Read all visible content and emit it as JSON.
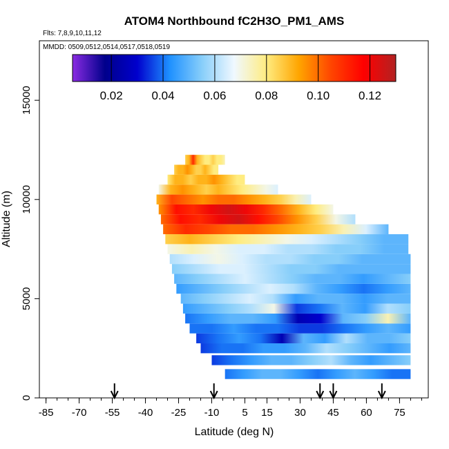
{
  "chart_data": {
    "type": "heatmap",
    "title": "ATOM4 Northbound fC2H3O_PM1_AMS",
    "subtitle": "Flts: 7,8,9,10,11,12",
    "annotation": "MMDD: 0509,0512,0514,0517,0518,0519",
    "xlabel": "Latitude (deg N)",
    "ylabel": "Altitude (m)",
    "xlim": [
      -88,
      88
    ],
    "ylim": [
      0,
      18000
    ],
    "x_ticks": [
      -85,
      -70,
      -55,
      -40,
      -25,
      -10,
      5,
      15,
      30,
      45,
      60,
      75
    ],
    "x_tick_labels": [
      "-85",
      "-70",
      "-55",
      "-40",
      "-25",
      "-10",
      "5",
      "15",
      "30",
      "45",
      "60",
      "75"
    ],
    "y_ticks": [
      0,
      5000,
      10000,
      15000
    ],
    "y_tick_labels": [
      "0",
      "5000",
      "10000",
      "15000"
    ],
    "colorbar": {
      "range": [
        0.005,
        0.13
      ],
      "ticks": [
        0.02,
        0.04,
        0.06,
        0.08,
        0.1,
        0.12
      ],
      "tick_labels": [
        "0.02",
        "0.04",
        "0.06",
        "0.08",
        "0.10",
        "0.12"
      ],
      "colors": [
        "#8a2be2",
        "#00008b",
        "#0000cd",
        "#1e90ff",
        "#87cefa",
        "#f0f8ff",
        "#ffec80",
        "#ffa500",
        "#ff4500",
        "#ff0000",
        "#b22222"
      ]
    },
    "arrows_latitude": [
      -54,
      -9,
      39,
      45,
      67
    ],
    "bands": [
      {
        "alt": 1200,
        "lat_min": -4,
        "lat_max": 80,
        "values": [
          0.04,
          0.045,
          0.05,
          0.05,
          0.045,
          0.04,
          0.045,
          0.05,
          0.045,
          0.04,
          0.04
        ]
      },
      {
        "alt": 1900,
        "lat_min": -10,
        "lat_max": 80,
        "values": [
          0.035,
          0.04,
          0.045,
          0.05,
          0.05,
          0.055,
          0.06,
          0.05,
          0.045,
          0.05,
          0.055
        ]
      },
      {
        "alt": 2500,
        "lat_min": -15,
        "lat_max": 80,
        "values": [
          0.035,
          0.04,
          0.04,
          0.045,
          0.045,
          0.05,
          0.06,
          0.055,
          0.05,
          0.045,
          0.05
        ]
      },
      {
        "alt": 3000,
        "lat_min": -17,
        "lat_max": 80,
        "values": [
          0.035,
          0.04,
          0.045,
          0.04,
          0.025,
          0.05,
          0.045,
          0.06,
          0.05,
          0.05,
          0.055
        ]
      },
      {
        "alt": 3500,
        "lat_min": -20,
        "lat_max": 80,
        "values": [
          0.04,
          0.04,
          0.045,
          0.04,
          0.04,
          0.035,
          0.035,
          0.04,
          0.045,
          0.05,
          0.045
        ]
      },
      {
        "alt": 4000,
        "lat_min": -22,
        "lat_max": 80,
        "values": [
          0.04,
          0.045,
          0.05,
          0.05,
          0.045,
          0.025,
          0.03,
          0.05,
          0.055,
          0.075,
          0.05
        ]
      },
      {
        "alt": 4500,
        "lat_min": -23,
        "lat_max": 80,
        "values": [
          0.045,
          0.05,
          0.055,
          0.06,
          0.07,
          0.035,
          0.04,
          0.05,
          0.045,
          0.06,
          0.055
        ]
      },
      {
        "alt": 5000,
        "lat_min": -24,
        "lat_max": 80,
        "values": [
          0.05,
          0.055,
          0.06,
          0.065,
          0.06,
          0.045,
          0.05,
          0.05,
          0.045,
          0.05,
          0.05
        ]
      },
      {
        "alt": 5500,
        "lat_min": -26,
        "lat_max": 80,
        "values": [
          0.045,
          0.05,
          0.055,
          0.06,
          0.065,
          0.06,
          0.05,
          0.045,
          0.04,
          0.045,
          0.05
        ]
      },
      {
        "alt": 6000,
        "lat_min": -27,
        "lat_max": 80,
        "values": [
          0.05,
          0.055,
          0.06,
          0.065,
          0.06,
          0.055,
          0.05,
          0.05,
          0.045,
          0.05,
          0.055
        ]
      },
      {
        "alt": 6500,
        "lat_min": -28,
        "lat_max": 80,
        "values": [
          0.055,
          0.06,
          0.065,
          0.065,
          0.06,
          0.055,
          0.055,
          0.05,
          0.05,
          0.05,
          0.05
        ]
      },
      {
        "alt": 7000,
        "lat_min": -29,
        "lat_max": 80,
        "values": [
          0.06,
          0.065,
          0.07,
          0.065,
          0.06,
          0.06,
          0.055,
          0.055,
          0.05,
          0.05,
          0.05
        ]
      },
      {
        "alt": 7500,
        "lat_min": -30,
        "lat_max": 79,
        "values": [
          0.07,
          0.075,
          0.07,
          0.065,
          0.065,
          0.06,
          0.06,
          0.055,
          0.055,
          0.05,
          0.05
        ]
      },
      {
        "alt": 8000,
        "lat_min": -31,
        "lat_max": 79,
        "values": [
          0.085,
          0.09,
          0.085,
          0.08,
          0.075,
          0.07,
          0.065,
          0.06,
          0.055,
          0.05,
          0.05
        ]
      },
      {
        "alt": 8500,
        "lat_min": -32,
        "lat_max": 70,
        "values": [
          0.1,
          0.11,
          0.105,
          0.1,
          0.1,
          0.095,
          0.09,
          0.085,
          0.075,
          0.065,
          0.05
        ]
      },
      {
        "alt": 9000,
        "lat_min": -33,
        "lat_max": 55,
        "values": [
          0.1,
          0.115,
          0.11,
          0.12,
          0.125,
          0.115,
          0.105,
          0.095,
          0.085,
          0.07,
          0.06
        ]
      },
      {
        "alt": 9500,
        "lat_min": -34,
        "lat_max": 45,
        "values": [
          0.095,
          0.115,
          0.11,
          0.12,
          0.125,
          0.12,
          0.11,
          0.1,
          0.09,
          0.08,
          0.07
        ]
      },
      {
        "alt": 10000,
        "lat_min": -35,
        "lat_max": 35,
        "values": [
          0.09,
          0.105,
          0.1,
          0.095,
          0.1,
          0.1,
          0.095,
          0.09,
          0.085,
          0.075,
          0.065
        ]
      },
      {
        "alt": 10500,
        "lat_min": -34,
        "lat_max": 20,
        "values": [
          0.07,
          0.09,
          0.095,
          0.09,
          0.085,
          0.09,
          0.085,
          0.08,
          0.075,
          0.07,
          0.065
        ]
      },
      {
        "alt": 11000,
        "lat_min": -30,
        "lat_max": 5,
        "values": [
          0.08,
          0.09,
          0.09,
          0.085,
          0.09,
          0.09,
          0.095,
          0.09,
          0.085,
          0.08,
          0.08
        ]
      },
      {
        "alt": 11500,
        "lat_min": -27,
        "lat_max": -7,
        "values": [
          0.085,
          0.09,
          0.09,
          0.095,
          0.09,
          0.085,
          0.085,
          0.09,
          0.085,
          0.08,
          0.08
        ]
      },
      {
        "alt": 12000,
        "lat_min": -22,
        "lat_max": -4,
        "values": [
          0.085,
          0.09,
          0.11,
          0.09,
          0.085,
          0.08,
          0.08,
          0.085,
          0.08,
          0.08,
          0.075
        ]
      }
    ]
  }
}
